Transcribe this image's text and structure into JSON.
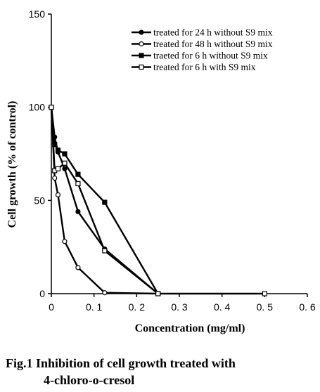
{
  "chart_data": {
    "type": "line",
    "xlabel": "Concentration (mg/ml)",
    "ylabel": "Cell growth (% of control)",
    "xlim": [
      0,
      0.6
    ],
    "ylim": [
      0,
      150
    ],
    "xticks": [
      0,
      0.1,
      0.2,
      0.3,
      0.4,
      0.5,
      0.6
    ],
    "xtick_labels": [
      "0",
      "0. 1",
      "0. 2",
      "0. 3",
      "0. 4",
      "0. 5",
      "0. 6"
    ],
    "yticks": [
      0,
      50,
      100,
      150
    ],
    "ytick_labels": [
      "0",
      "50",
      "100",
      "150"
    ],
    "legend_position": "top-right",
    "series": [
      {
        "name": "treated for 24 h without S9 mix",
        "marker": "filled-circle",
        "x": [
          0,
          0.0078,
          0.0156,
          0.03125,
          0.0625,
          0.125,
          0.25
        ],
        "y": [
          100,
          84,
          76,
          67,
          44,
          24,
          0
        ]
      },
      {
        "name": "treated for 48 h without S9 mix",
        "marker": "open-circle",
        "x": [
          0,
          0.0078,
          0.0156,
          0.03125,
          0.0625,
          0.125,
          0.25
        ],
        "y": [
          100,
          62,
          53,
          28,
          14,
          0.5,
          0
        ]
      },
      {
        "name": "traeted for 6 h without S9 mix",
        "marker": "filled-square",
        "x": [
          0,
          0.0078,
          0.0156,
          0.03125,
          0.0625,
          0.125,
          0.25
        ],
        "y": [
          100,
          80,
          77,
          75,
          64,
          49,
          0
        ]
      },
      {
        "name": "treated for 6 h with S9 mix",
        "marker": "open-square",
        "x": [
          0,
          0.0078,
          0.0156,
          0.03125,
          0.0625,
          0.125,
          0.25,
          0.5
        ],
        "y": [
          100,
          66,
          67,
          70,
          59,
          23,
          0,
          0
        ]
      }
    ]
  },
  "caption": {
    "line1": "Fig.1  Inhibition of cell growth treated with",
    "line2": "4-chloro-o-cresol"
  }
}
